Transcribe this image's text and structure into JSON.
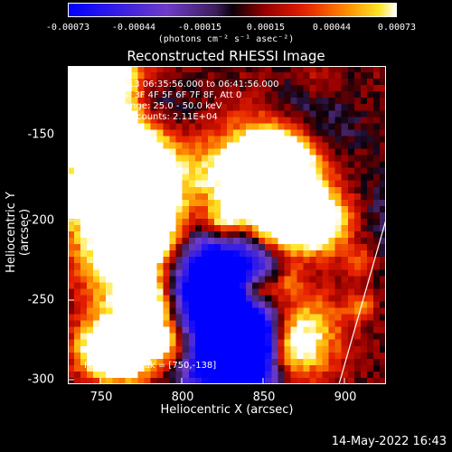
{
  "colorbar": {
    "ticks": [
      "-0.00073",
      "-0.00044",
      "-0.00015",
      "0.00015",
      "0.00044",
      "0.00073"
    ],
    "units": "(photons cm⁻² s⁻¹ asec⁻²)"
  },
  "title": "Reconstructed RHESSI Image",
  "annotation": {
    "line1": "16-Jun-2013 06:35:56.000 to 06:41:56.000",
    "line2": "Detectors: 3F 4F 5F 6F 7F 8F, Att 0",
    "line3": "Energy Range: 25.0 - 50.0 keV",
    "line4": "Clean   Total counts: 2.11E+04",
    "peak": "Position of Peak = [750,-138]"
  },
  "axes": {
    "xlabel": "Heliocentric X (arcsec)",
    "ylabel": "Heliocentric Y (arcsec)",
    "xticks": [
      "750",
      "800",
      "850",
      "900"
    ],
    "yticks": [
      "-150",
      "-200",
      "-250",
      "-300"
    ]
  },
  "datestamp": "14-May-2022 16:43"
}
